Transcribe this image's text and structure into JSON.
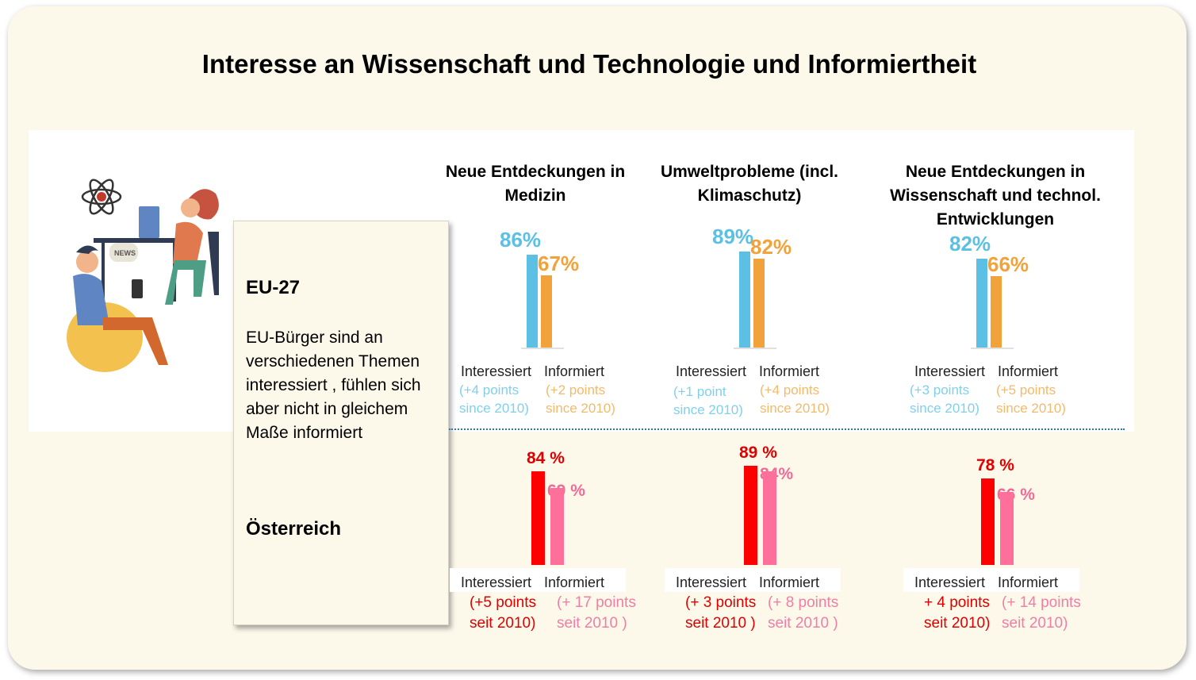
{
  "title": "Interesse an Wissenschaft und Technologie und Informiertheit",
  "textbox": {
    "eu_heading": "EU-27",
    "eu_text": "EU-Bürger sind an verschiedenen Themen interessiert , fühlen sich aber nicht in gleichem Maße informiert",
    "at_heading": "Österreich"
  },
  "colors": {
    "eu_interested": "#5bc0e3",
    "eu_informed": "#f2a23a",
    "at_interested": "#ff0000",
    "at_informed": "#ff6f9c"
  },
  "chart_data": [
    {
      "type": "bar",
      "title": "Neue Entdeckungen in Medizin",
      "categories": [
        "Interessiert",
        "Informiert"
      ],
      "series": [
        {
          "name": "EU-27",
          "values": [
            86,
            67
          ],
          "labels": [
            "86%",
            "67%"
          ],
          "changes": [
            "(+4 points since 2010)",
            "(+2 points since 2010)"
          ]
        },
        {
          "name": "Österreich",
          "values": [
            84,
            69
          ],
          "labels": [
            "84 %",
            "69 %"
          ],
          "changes": [
            "(+5 points seit 2010)",
            "(+ 17 points seit 2010 )"
          ]
        }
      ]
    },
    {
      "type": "bar",
      "title": "Umweltprobleme (incl. Klimaschutz)",
      "categories": [
        "Interessiert",
        "Informiert"
      ],
      "series": [
        {
          "name": "EU-27",
          "values": [
            89,
            82
          ],
          "labels": [
            "89%",
            "82%"
          ],
          "changes": [
            "(+1 point since 2010)",
            "(+4 points since 2010)"
          ]
        },
        {
          "name": "Österreich",
          "values": [
            89,
            84
          ],
          "labels": [
            "89 %",
            "84%"
          ],
          "changes": [
            "(+ 3 points seit 2010 )",
            "(+ 8 points seit 2010 )"
          ]
        }
      ]
    },
    {
      "type": "bar",
      "title": "Neue Entdeckungen in Wissenschaft und technol. Entwicklungen",
      "categories": [
        "Interessiert",
        "Informiert"
      ],
      "series": [
        {
          "name": "EU-27",
          "values": [
            82,
            66
          ],
          "labels": [
            "82%",
            "66%"
          ],
          "changes": [
            "(+3 points since 2010)",
            "(+5 points since 2010)"
          ]
        },
        {
          "name": "Österreich",
          "values": [
            78,
            66
          ],
          "labels": [
            "78 %",
            "66 %"
          ],
          "changes": [
            "+ 4 points seit 2010)",
            "(+ 14 points seit 2010)"
          ]
        }
      ]
    }
  ]
}
